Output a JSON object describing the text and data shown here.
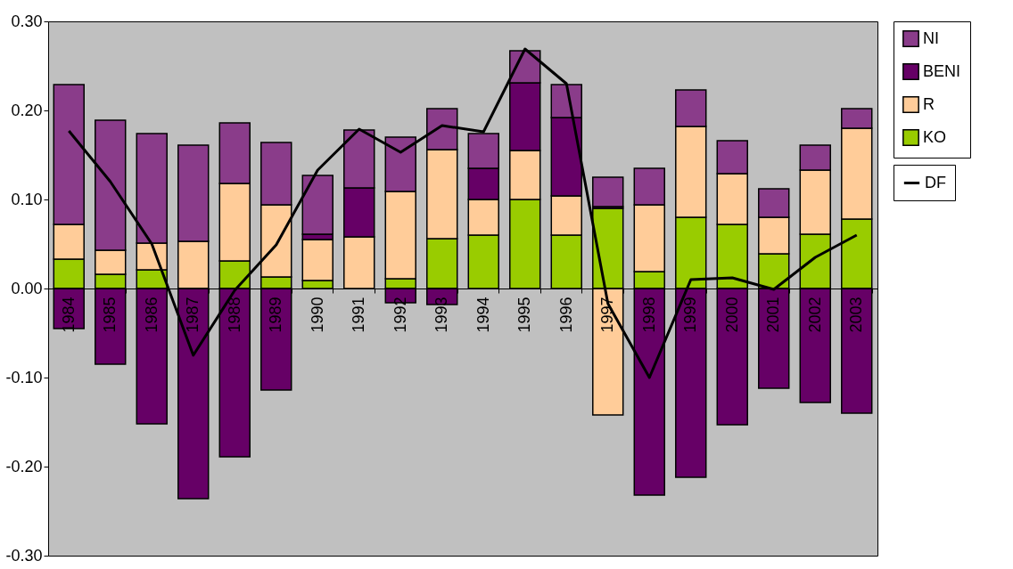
{
  "chart_data": {
    "type": "bar",
    "stacked": true,
    "categories": [
      "1984",
      "1985",
      "1986",
      "1987",
      "1988",
      "1989",
      "1990",
      "1991",
      "1992",
      "1993",
      "1994",
      "1995",
      "1996",
      "1997",
      "1998",
      "1999",
      "2000",
      "2001",
      "2002",
      "2003"
    ],
    "series": [
      {
        "name": "KO",
        "color": "#99cc00",
        "values": [
          0.033,
          0.016,
          0.021,
          null,
          0.031,
          0.013,
          0.009,
          null,
          0.011,
          0.056,
          0.06,
          0.1,
          0.06,
          0.09,
          0.019,
          0.08,
          0.072,
          0.039,
          0.061,
          0.078
        ]
      },
      {
        "name": "R",
        "color": "#ffcc99",
        "values": [
          0.039,
          0.027,
          0.03,
          0.053,
          0.087,
          0.081,
          0.046,
          0.058,
          0.098,
          0.1,
          0.04,
          0.055,
          0.044,
          -0.142,
          0.075,
          0.102,
          0.057,
          0.041,
          0.072,
          0.102
        ]
      },
      {
        "name": "BENI",
        "color": "#660066",
        "values": [
          -0.045,
          -0.085,
          -0.152,
          -0.236,
          -0.189,
          -0.114,
          0.006,
          0.055,
          -0.016,
          -0.018,
          0.035,
          0.076,
          0.088,
          0.002,
          -0.232,
          -0.212,
          -0.153,
          -0.112,
          -0.128,
          -0.14
        ]
      },
      {
        "name": "NI",
        "color": "#8a3c8a",
        "values": [
          0.157,
          0.146,
          0.123,
          0.108,
          0.068,
          0.07,
          0.066,
          0.065,
          0.061,
          0.046,
          0.039,
          0.036,
          0.037,
          0.033,
          0.041,
          0.041,
          0.037,
          0.032,
          0.028,
          0.022
        ]
      },
      {
        "name": "DF",
        "type": "line",
        "color": "#000000",
        "values": [
          0.177,
          0.12,
          0.05,
          -0.075,
          -0.002,
          0.049,
          0.133,
          0.179,
          0.153,
          0.183,
          0.176,
          0.269,
          0.23,
          -0.017,
          -0.1,
          0.01,
          0.012,
          -0.001,
          0.035,
          0.06
        ]
      }
    ],
    "ylim": [
      -0.3,
      0.3
    ],
    "yticks": [
      {
        "value": -0.3,
        "label": "-0.30"
      },
      {
        "value": -0.2,
        "label": "-0.20"
      },
      {
        "value": -0.1,
        "label": "-0.10"
      },
      {
        "value": 0,
        "label": "0.00"
      },
      {
        "value": 0.1,
        "label": "0.10"
      },
      {
        "value": 0.2,
        "label": "0.20"
      },
      {
        "value": 0.3,
        "label": "0.30"
      }
    ],
    "grid": false,
    "legend": "right",
    "line_style": "solid"
  }
}
